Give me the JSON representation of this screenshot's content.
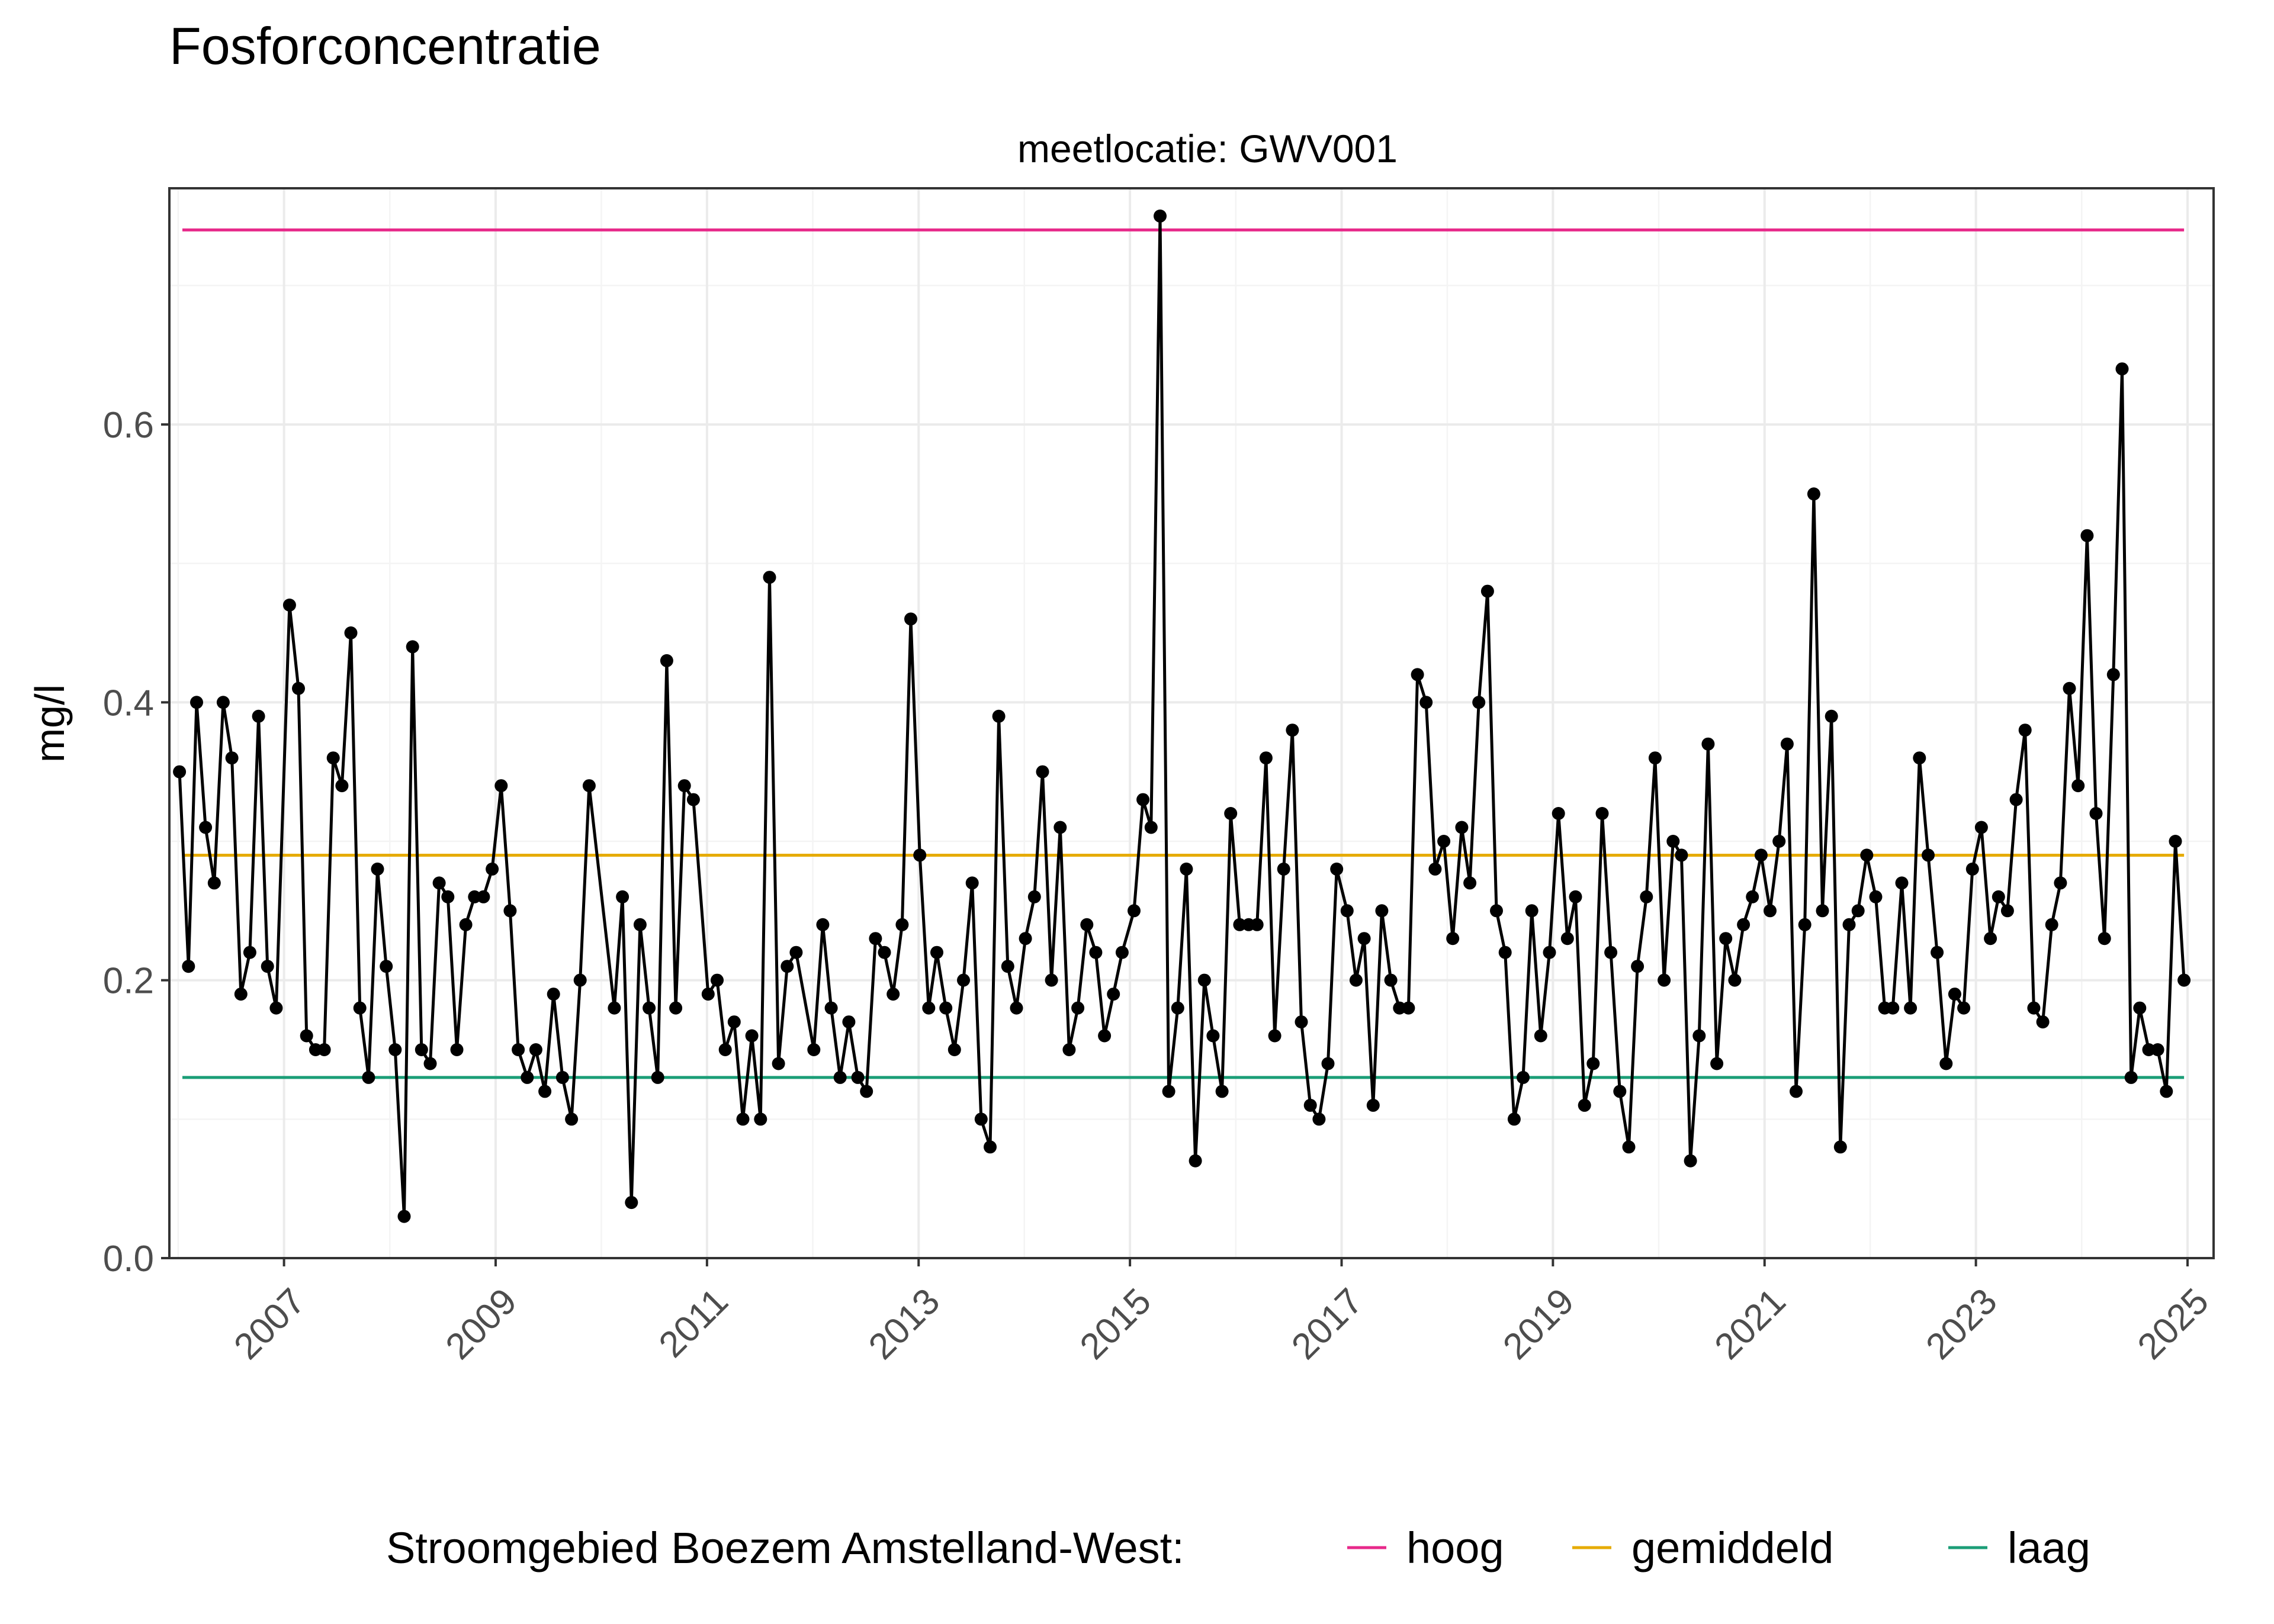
{
  "colors": {
    "hoog": "#e7298a",
    "gemiddeld": "#e6ab02",
    "laag": "#1b9e77",
    "series": "#000000",
    "panel_border": "#333333",
    "grid_major": "#ebebeb",
    "grid_minor": "#f4f4f4",
    "tick_label": "#4d4d4d"
  },
  "chart_data": {
    "type": "line",
    "title": "Fosforconcentratie",
    "subtitle": "meetlocatie: GWV001",
    "ylabel": "mg/l",
    "xlabel": "",
    "ylim": [
      0.0,
      0.77
    ],
    "xlim": [
      "2005-12-01",
      "2025-04-01"
    ],
    "y_ticks": [
      "0.0",
      "0.2",
      "0.4",
      "0.6"
    ],
    "x_ticks": [
      "2007",
      "2009",
      "2011",
      "2013",
      "2015",
      "2017",
      "2019",
      "2021",
      "2023",
      "2025"
    ],
    "grid": true,
    "legend_position": "bottom",
    "legend_title": "Stroomgebied Boezem Amstelland-West:",
    "reference_lines": [
      {
        "name": "hoog",
        "value": 0.74,
        "color": "#e7298a",
        "x_start": "2006-01-15",
        "x_end": "2024-12-20"
      },
      {
        "name": "gemiddeld",
        "value": 0.29,
        "color": "#e6ab02",
        "x_start": "2006-01-15",
        "x_end": "2024-12-20"
      },
      {
        "name": "laag",
        "value": 0.13,
        "color": "#1b9e77",
        "x_start": "2006-01-15",
        "x_end": "2024-12-20"
      }
    ],
    "series": [
      {
        "x": [
          "2006-01-05",
          "2006-02-05",
          "2006-03-05",
          "2006-04-05",
          "2006-05-05",
          "2006-06-05",
          "2006-07-05",
          "2006-08-05",
          "2006-09-05",
          "2006-10-05",
          "2006-11-05",
          "2006-12-05",
          "2007-01-20",
          "2007-02-20",
          "2007-03-20",
          "2007-04-20",
          "2007-05-20",
          "2007-06-20",
          "2007-07-20",
          "2007-08-20",
          "2007-09-20",
          "2007-10-20",
          "2007-11-20",
          "2007-12-20",
          "2008-01-20",
          "2008-02-20",
          "2008-03-20",
          "2008-04-20",
          "2008-05-20",
          "2008-06-20",
          "2008-07-20",
          "2008-08-20",
          "2008-09-20",
          "2008-10-20",
          "2008-11-20",
          "2008-12-20",
          "2009-01-20",
          "2009-02-20",
          "2009-03-20",
          "2009-04-20",
          "2009-05-20",
          "2009-06-20",
          "2009-07-20",
          "2009-08-20",
          "2009-09-20",
          "2009-10-20",
          "2009-11-20",
          "2010-02-15",
          "2010-03-15",
          "2010-04-15",
          "2010-05-15",
          "2010-06-15",
          "2010-07-15",
          "2010-08-15",
          "2010-09-15",
          "2010-10-15",
          "2010-11-15",
          "2011-01-05",
          "2011-02-05",
          "2011-03-05",
          "2011-04-05",
          "2011-05-05",
          "2011-06-05",
          "2011-07-05",
          "2011-08-05",
          "2011-09-05",
          "2011-10-05",
          "2011-11-05",
          "2012-01-05",
          "2012-02-05",
          "2012-03-05",
          "2012-04-05",
          "2012-05-05",
          "2012-06-05",
          "2012-07-05",
          "2012-08-05",
          "2012-09-05",
          "2012-10-05",
          "2012-11-05",
          "2012-12-05",
          "2013-01-05",
          "2013-02-05",
          "2013-03-05",
          "2013-04-05",
          "2013-05-05",
          "2013-06-05",
          "2013-07-05",
          "2013-08-05",
          "2013-09-05",
          "2013-10-05",
          "2013-11-05",
          "2013-12-05",
          "2014-01-05",
          "2014-02-05",
          "2014-03-05",
          "2014-04-05",
          "2014-05-05",
          "2014-06-05",
          "2014-07-05",
          "2014-08-05",
          "2014-09-05",
          "2014-10-05",
          "2014-11-05",
          "2014-12-05",
          "2015-01-15",
          "2015-02-15",
          "2015-03-15",
          "2015-04-15",
          "2015-05-15",
          "2015-06-15",
          "2015-07-15",
          "2015-08-15",
          "2015-09-15",
          "2015-10-15",
          "2015-11-15",
          "2015-12-15",
          "2016-01-15",
          "2016-02-15",
          "2016-03-15",
          "2016-04-15",
          "2016-05-15",
          "2016-06-15",
          "2016-07-15",
          "2016-08-15",
          "2016-09-15",
          "2016-10-15",
          "2016-11-15",
          "2016-12-15",
          "2017-01-20",
          "2017-02-20",
          "2017-03-20",
          "2017-04-20",
          "2017-05-20",
          "2017-06-20",
          "2017-07-20",
          "2017-08-20",
          "2017-09-20",
          "2017-10-20",
          "2017-11-20",
          "2017-12-20",
          "2018-01-20",
          "2018-02-20",
          "2018-03-20",
          "2018-04-20",
          "2018-05-20",
          "2018-06-20",
          "2018-07-20",
          "2018-08-20",
          "2018-09-20",
          "2018-10-20",
          "2018-11-20",
          "2018-12-20",
          "2019-01-20",
          "2019-02-20",
          "2019-03-20",
          "2019-04-20",
          "2019-05-20",
          "2019-06-20",
          "2019-07-20",
          "2019-08-20",
          "2019-09-20",
          "2019-10-20",
          "2019-11-20",
          "2019-12-20",
          "2020-01-20",
          "2020-02-20",
          "2020-03-20",
          "2020-04-20",
          "2020-05-20",
          "2020-06-20",
          "2020-07-20",
          "2020-08-20",
          "2020-09-20",
          "2020-10-20",
          "2020-11-20",
          "2020-12-20",
          "2021-01-20",
          "2021-02-20",
          "2021-03-20",
          "2021-04-20",
          "2021-05-20",
          "2021-06-20",
          "2021-07-20",
          "2021-08-20",
          "2021-09-20",
          "2021-10-20",
          "2021-11-20",
          "2021-12-20",
          "2022-01-20",
          "2022-02-20",
          "2022-03-20",
          "2022-04-20",
          "2022-05-20",
          "2022-06-20",
          "2022-07-20",
          "2022-08-20",
          "2022-09-20",
          "2022-10-20",
          "2022-11-20",
          "2022-12-20",
          "2023-01-20",
          "2023-02-20",
          "2023-03-20",
          "2023-04-20",
          "2023-05-20",
          "2023-06-20",
          "2023-07-20",
          "2023-08-20",
          "2023-09-20",
          "2023-10-20",
          "2023-11-20",
          "2023-12-20",
          "2024-01-20",
          "2024-02-20",
          "2024-03-20",
          "2024-04-20",
          "2024-05-20",
          "2024-06-20",
          "2024-07-20",
          "2024-08-20",
          "2024-09-20",
          "2024-10-20",
          "2024-11-20",
          "2024-12-20"
        ],
        "y": [
          0.35,
          0.21,
          0.4,
          0.31,
          0.27,
          0.4,
          0.36,
          0.19,
          0.22,
          0.39,
          0.21,
          0.18,
          0.47,
          0.41,
          0.16,
          0.15,
          0.15,
          0.36,
          0.34,
          0.45,
          0.18,
          0.13,
          0.28,
          0.21,
          0.15,
          0.03,
          0.44,
          0.15,
          0.14,
          0.27,
          0.26,
          0.15,
          0.24,
          0.26,
          0.26,
          0.28,
          0.34,
          0.25,
          0.15,
          0.13,
          0.15,
          0.12,
          0.19,
          0.13,
          0.1,
          0.2,
          0.34,
          0.18,
          0.26,
          0.04,
          0.24,
          0.18,
          0.13,
          0.43,
          0.18,
          0.34,
          0.33,
          0.19,
          0.2,
          0.15,
          0.17,
          0.1,
          0.16,
          0.1,
          0.49,
          0.14,
          0.21,
          0.22,
          0.15,
          0.24,
          0.18,
          0.13,
          0.17,
          0.13,
          0.12,
          0.23,
          0.22,
          0.19,
          0.24,
          0.46,
          0.29,
          0.18,
          0.22,
          0.18,
          0.15,
          0.2,
          0.27,
          0.1,
          0.08,
          0.39,
          0.21,
          0.18,
          0.23,
          0.26,
          0.35,
          0.2,
          0.31,
          0.15,
          0.18,
          0.24,
          0.22,
          0.16,
          0.19,
          0.22,
          0.25,
          0.33,
          0.31,
          0.75,
          0.12,
          0.18,
          0.28,
          0.07,
          0.2,
          0.16,
          0.12,
          0.32,
          0.24,
          0.24,
          0.24,
          0.36,
          0.16,
          0.28,
          0.38,
          0.17,
          0.11,
          0.1,
          0.14,
          0.28,
          0.25,
          0.2,
          0.23,
          0.11,
          0.25,
          0.2,
          0.18,
          0.18,
          0.42,
          0.4,
          0.28,
          0.3,
          0.23,
          0.31,
          0.27,
          0.4,
          0.48,
          0.25,
          0.22,
          0.1,
          0.13,
          0.25,
          0.16,
          0.22,
          0.32,
          0.23,
          0.26,
          0.11,
          0.14,
          0.32,
          0.22,
          0.12,
          0.08,
          0.21,
          0.26,
          0.36,
          0.2,
          0.3,
          0.29,
          0.07,
          0.16,
          0.37,
          0.14,
          0.23,
          0.2,
          0.24,
          0.26,
          0.29,
          0.25,
          0.3,
          0.37,
          0.12,
          0.24,
          0.55,
          0.25,
          0.39,
          0.08,
          0.24,
          0.25,
          0.29,
          0.26,
          0.18,
          0.18,
          0.27,
          0.18,
          0.36,
          0.29,
          0.22,
          0.14,
          0.19,
          0.18,
          0.28,
          0.31,
          0.23,
          0.26,
          0.25,
          0.33,
          0.38,
          0.18,
          0.17,
          0.24,
          0.27,
          0.41,
          0.34,
          0.52,
          0.32,
          0.23,
          0.42,
          0.64,
          0.13,
          0.18,
          0.15,
          0.15,
          0.12,
          0.3,
          0.2
        ]
      }
    ]
  }
}
